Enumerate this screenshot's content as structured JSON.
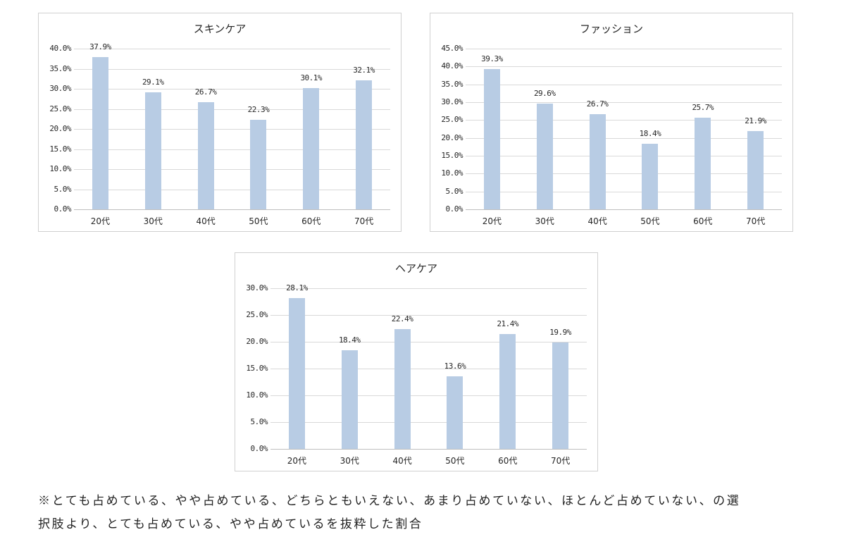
{
  "chart_data": [
    {
      "type": "bar",
      "title": "スキンケア",
      "categories": [
        "20代",
        "30代",
        "40代",
        "50代",
        "60代",
        "70代"
      ],
      "values": [
        37.9,
        29.1,
        26.7,
        22.3,
        30.1,
        32.1
      ],
      "value_labels": [
        "37.9%",
        "29.1%",
        "26.7%",
        "22.3%",
        "30.1%",
        "32.1%"
      ],
      "yticks": [
        "0.0%",
        "5.0%",
        "10.0%",
        "15.0%",
        "20.0%",
        "25.0%",
        "30.0%",
        "35.0%",
        "40.0%"
      ],
      "ylim": [
        0,
        40
      ],
      "xlabel": "",
      "ylabel": "",
      "grid": true,
      "legend": "none",
      "bar_color": "#b8cce4"
    },
    {
      "type": "bar",
      "title": "ファッション",
      "categories": [
        "20代",
        "30代",
        "40代",
        "50代",
        "60代",
        "70代"
      ],
      "values": [
        39.3,
        29.6,
        26.7,
        18.4,
        25.7,
        21.9
      ],
      "value_labels": [
        "39.3%",
        "29.6%",
        "26.7%",
        "18.4%",
        "25.7%",
        "21.9%"
      ],
      "yticks": [
        "0.0%",
        "5.0%",
        "10.0%",
        "15.0%",
        "20.0%",
        "25.0%",
        "30.0%",
        "35.0%",
        "40.0%",
        "45.0%"
      ],
      "ylim": [
        0,
        45
      ],
      "xlabel": "",
      "ylabel": "",
      "grid": true,
      "legend": "none",
      "bar_color": "#b8cce4"
    },
    {
      "type": "bar",
      "title": "ヘアケア",
      "categories": [
        "20代",
        "30代",
        "40代",
        "50代",
        "60代",
        "70代"
      ],
      "values": [
        28.1,
        18.4,
        22.4,
        13.6,
        21.4,
        19.9
      ],
      "value_labels": [
        "28.1%",
        "18.4%",
        "22.4%",
        "13.6%",
        "21.4%",
        "19.9%"
      ],
      "yticks": [
        "0.0%",
        "5.0%",
        "10.0%",
        "15.0%",
        "20.0%",
        "25.0%",
        "30.0%"
      ],
      "ylim": [
        0,
        30
      ],
      "xlabel": "",
      "ylabel": "",
      "grid": true,
      "legend": "none",
      "bar_color": "#b8cce4"
    }
  ],
  "footnote": {
    "line1": "※とても占めている、やや占めている、どちらともいえない、あまり占めていない、ほとんど占めていない、の選",
    "line2": "択肢より、とても占めている、やや占めているを抜粋した割合"
  }
}
